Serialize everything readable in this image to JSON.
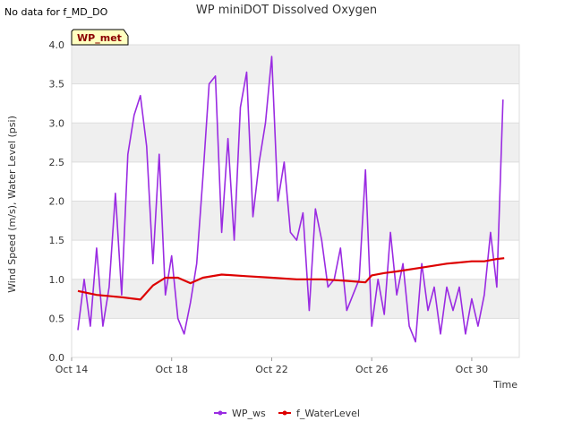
{
  "header": {
    "no_data_text": "No data for f_MD_DO"
  },
  "badge": {
    "label": "WP_met"
  },
  "colors": {
    "ws": "#9a2be2",
    "water": "#dd0000",
    "band": "#efefef",
    "badge_bg": "#ffffc0"
  },
  "chart_data": {
    "type": "line",
    "title": "WP miniDOT Dissolved Oxygen",
    "xlabel": "Time",
    "ylabel": "Wind Speed (m/s), Water Level (psi)",
    "xlim": [
      0,
      17.9
    ],
    "ylim": [
      0,
      4.0
    ],
    "x_unit": "days since Oct 14",
    "x_ticks": [
      {
        "day": 0,
        "label": "Oct 14"
      },
      {
        "day": 4,
        "label": "Oct 18"
      },
      {
        "day": 8,
        "label": "Oct 22"
      },
      {
        "day": 12,
        "label": "Oct 26"
      },
      {
        "day": 16,
        "label": "Oct 30"
      }
    ],
    "y_ticks": [
      "0.0",
      "0.5",
      "1.0",
      "1.5",
      "2.0",
      "2.5",
      "3.0",
      "3.5",
      "4.0"
    ],
    "y_tick_values": [
      0,
      0.5,
      1,
      1.5,
      2,
      2.5,
      3,
      3.5,
      4
    ],
    "legend": {
      "placement": "bottom"
    },
    "series": [
      {
        "name": "WP_ws",
        "color": "#9a2be2",
        "x": [
          0.25,
          0.5,
          0.75,
          1.0,
          1.25,
          1.5,
          1.75,
          2.0,
          2.25,
          2.5,
          2.75,
          3.0,
          3.25,
          3.5,
          3.75,
          4.0,
          4.25,
          4.5,
          4.75,
          5.0,
          5.25,
          5.5,
          5.75,
          6.0,
          6.25,
          6.5,
          6.75,
          7.0,
          7.25,
          7.5,
          7.75,
          8.0,
          8.25,
          8.5,
          8.75,
          9.0,
          9.25,
          9.5,
          9.75,
          10.0,
          10.25,
          10.5,
          10.75,
          11.0,
          11.25,
          11.5,
          11.75,
          12.0,
          12.25,
          12.5,
          12.75,
          13.0,
          13.25,
          13.5,
          13.75,
          14.0,
          14.25,
          14.5,
          14.75,
          15.0,
          15.25,
          15.5,
          15.75,
          16.0,
          16.25,
          16.5,
          16.75,
          17.0,
          17.25
        ],
        "y": [
          0.35,
          1.0,
          0.4,
          1.4,
          0.4,
          0.9,
          2.1,
          0.8,
          2.6,
          3.1,
          3.35,
          2.7,
          1.2,
          2.6,
          0.8,
          1.3,
          0.5,
          0.3,
          0.7,
          1.2,
          2.3,
          3.5,
          3.6,
          1.6,
          2.8,
          1.5,
          3.2,
          3.65,
          1.8,
          2.5,
          3.0,
          3.85,
          2.0,
          2.5,
          1.6,
          1.5,
          1.85,
          0.6,
          1.9,
          1.5,
          0.9,
          1.0,
          1.4,
          0.6,
          0.8,
          1.0,
          2.4,
          0.4,
          1.0,
          0.55,
          1.6,
          0.8,
          1.2,
          0.4,
          0.2,
          1.2,
          0.6,
          0.9,
          0.3,
          0.9,
          0.6,
          0.9,
          0.3,
          0.75,
          0.4,
          0.8,
          1.6,
          0.9,
          3.3
        ]
      },
      {
        "name": "f_WaterLevel",
        "color": "#dd0000",
        "x": [
          0.25,
          1.0,
          2.0,
          2.75,
          3.25,
          3.75,
          4.25,
          4.75,
          5.25,
          6.0,
          7.0,
          8.0,
          9.0,
          10.0,
          11.0,
          11.75,
          12.0,
          12.5,
          13.0,
          14.0,
          15.0,
          16.0,
          16.5,
          17.0,
          17.3
        ],
        "y": [
          0.85,
          0.8,
          0.77,
          0.74,
          0.92,
          1.02,
          1.02,
          0.95,
          1.02,
          1.06,
          1.04,
          1.02,
          1.0,
          1.0,
          0.98,
          0.96,
          1.05,
          1.08,
          1.1,
          1.15,
          1.2,
          1.23,
          1.23,
          1.26,
          1.27
        ]
      }
    ]
  }
}
